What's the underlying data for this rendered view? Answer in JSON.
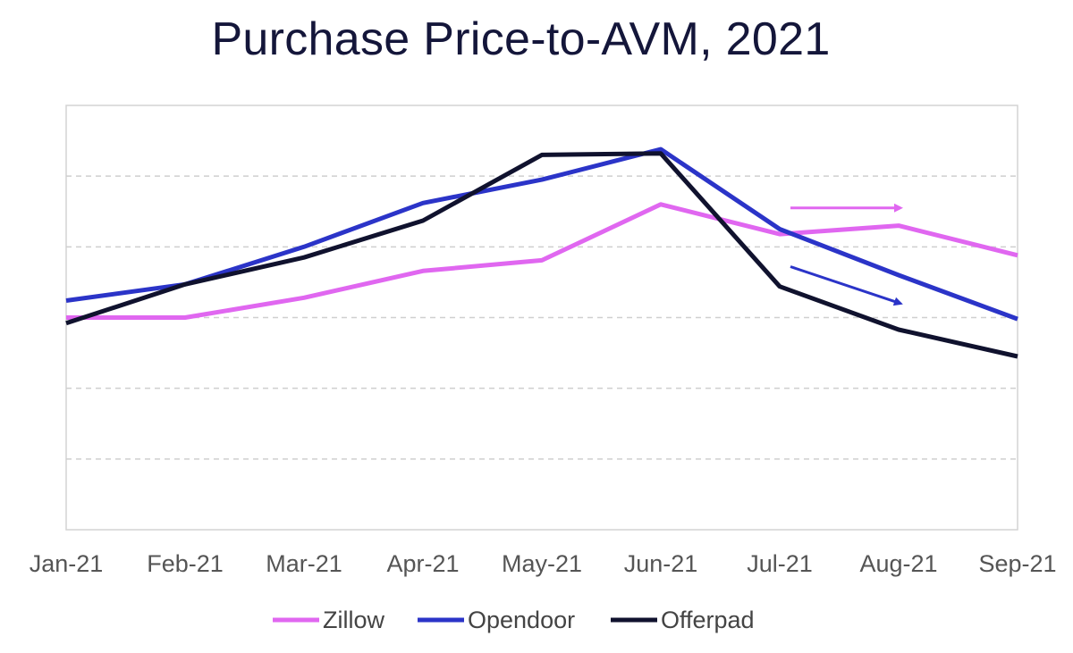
{
  "chart_data": {
    "type": "line",
    "title": "Purchase Price-to-AVM, 2021",
    "xlabel": "",
    "ylabel": "",
    "categories": [
      "Jan-21",
      "Feb-21",
      "Mar-21",
      "Apr-21",
      "May-21",
      "Jun-21",
      "Jul-21",
      "Aug-21",
      "Sep-21"
    ],
    "ylim": [
      0,
      6
    ],
    "y_ticks_labeled": false,
    "grid": true,
    "legend_position": "bottom",
    "series": [
      {
        "name": "Zillow",
        "color": "#e067f0",
        "values": [
          3.0,
          3.0,
          3.28,
          3.66,
          3.81,
          4.6,
          4.18,
          4.3,
          3.88
        ]
      },
      {
        "name": "Opendoor",
        "color": "#2b34c8",
        "values": [
          3.24,
          3.47,
          4.0,
          4.62,
          4.95,
          5.38,
          4.25,
          3.6,
          2.98
        ]
      },
      {
        "name": "Offerpad",
        "color": "#10122e",
        "values": [
          2.92,
          3.47,
          3.85,
          4.37,
          5.3,
          5.32,
          3.44,
          2.83,
          2.45
        ]
      }
    ],
    "annotations": [
      {
        "type": "arrow",
        "color": "#e067f0",
        "series": "Zillow",
        "from": [
          "Jul-21",
          4.55
        ],
        "to": [
          "Aug-21",
          4.55
        ]
      },
      {
        "type": "arrow",
        "color": "#2b34c8",
        "series": "Opendoor",
        "from": [
          "Jul-21",
          3.72
        ],
        "to": [
          "Aug-21",
          3.2
        ]
      }
    ]
  }
}
